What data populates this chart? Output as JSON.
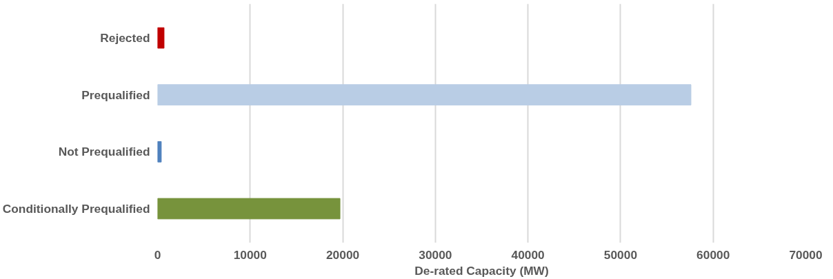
{
  "chart_data": {
    "type": "bar",
    "orientation": "horizontal",
    "xlabel": "De-rated Capacity (MW)",
    "categories": [
      "Rejected",
      "Prequalified",
      "Not Prequalified",
      "Conditionally Prequalified"
    ],
    "values": [
      700,
      57600,
      400,
      19700
    ],
    "colors": [
      "#c00000",
      "#b9cde5",
      "#4f81bd",
      "#77933c"
    ],
    "xlim": [
      0,
      70000
    ],
    "xticks": [
      0,
      10000,
      20000,
      30000,
      40000,
      50000,
      60000,
      70000
    ],
    "grid": "x"
  }
}
